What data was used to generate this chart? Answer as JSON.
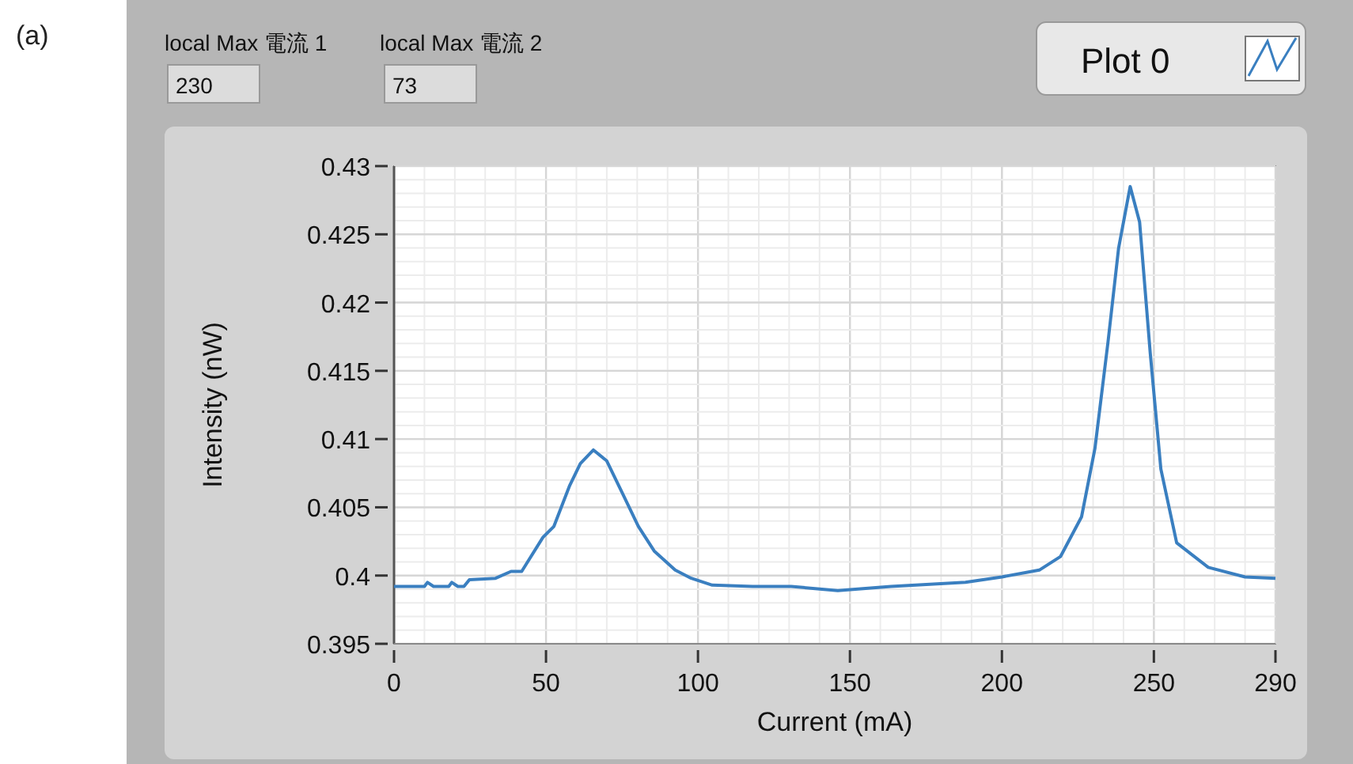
{
  "chart_data": {
    "type": "line",
    "xlabel": "Current (mA)",
    "ylabel": "Intensity (nW)",
    "annotations": [
      "(a)",
      "local Max 電流 1",
      "230",
      "local Max 電流 2",
      "73"
    ],
    "legend": "top right",
    "grid": true,
    "xlim": [
      0,
      290
    ],
    "xticks": [
      0,
      50,
      100,
      150,
      200,
      250,
      290
    ],
    "ylim": [
      0.395,
      0.43
    ],
    "yticks": [
      0.395,
      0.4,
      0.405,
      0.41,
      0.415,
      0.42,
      0.425,
      0.43
    ],
    "series": [
      {
        "name": "Plot 0",
        "color": "#3a7fc0",
        "x": [
          0,
          10,
          11,
          13,
          18,
          19,
          21,
          23,
          24.8,
          33.4,
          38.5,
          42,
          49,
          52.6,
          57.8,
          61.3,
          65.6,
          70,
          75.2,
          80.4,
          85.6,
          92.5,
          97.8,
          104.7,
          118,
          130.7,
          146,
          163.5,
          188,
          200,
          212.3,
          219.3,
          226.2,
          230.6,
          234.9,
          238.4,
          242.2,
          245.3,
          248.8,
          252.3,
          257.5,
          267.9,
          280,
          290
        ],
        "values": [
          0.3992,
          0.3992,
          0.3995,
          0.3992,
          0.3992,
          0.3995,
          0.3992,
          0.3992,
          0.3997,
          0.3998,
          0.4003,
          0.4003,
          0.4028,
          0.4036,
          0.4066,
          0.4082,
          0.4092,
          0.4084,
          0.406,
          0.4036,
          0.4018,
          0.4004,
          0.3998,
          0.3993,
          0.3992,
          0.3992,
          0.3989,
          0.3992,
          0.3995,
          0.3999,
          0.4004,
          0.4014,
          0.4043,
          0.4093,
          0.4171,
          0.424,
          0.4285,
          0.4259,
          0.4163,
          0.4078,
          0.4024,
          0.4006,
          0.3999,
          0.3998
        ]
      }
    ]
  }
}
